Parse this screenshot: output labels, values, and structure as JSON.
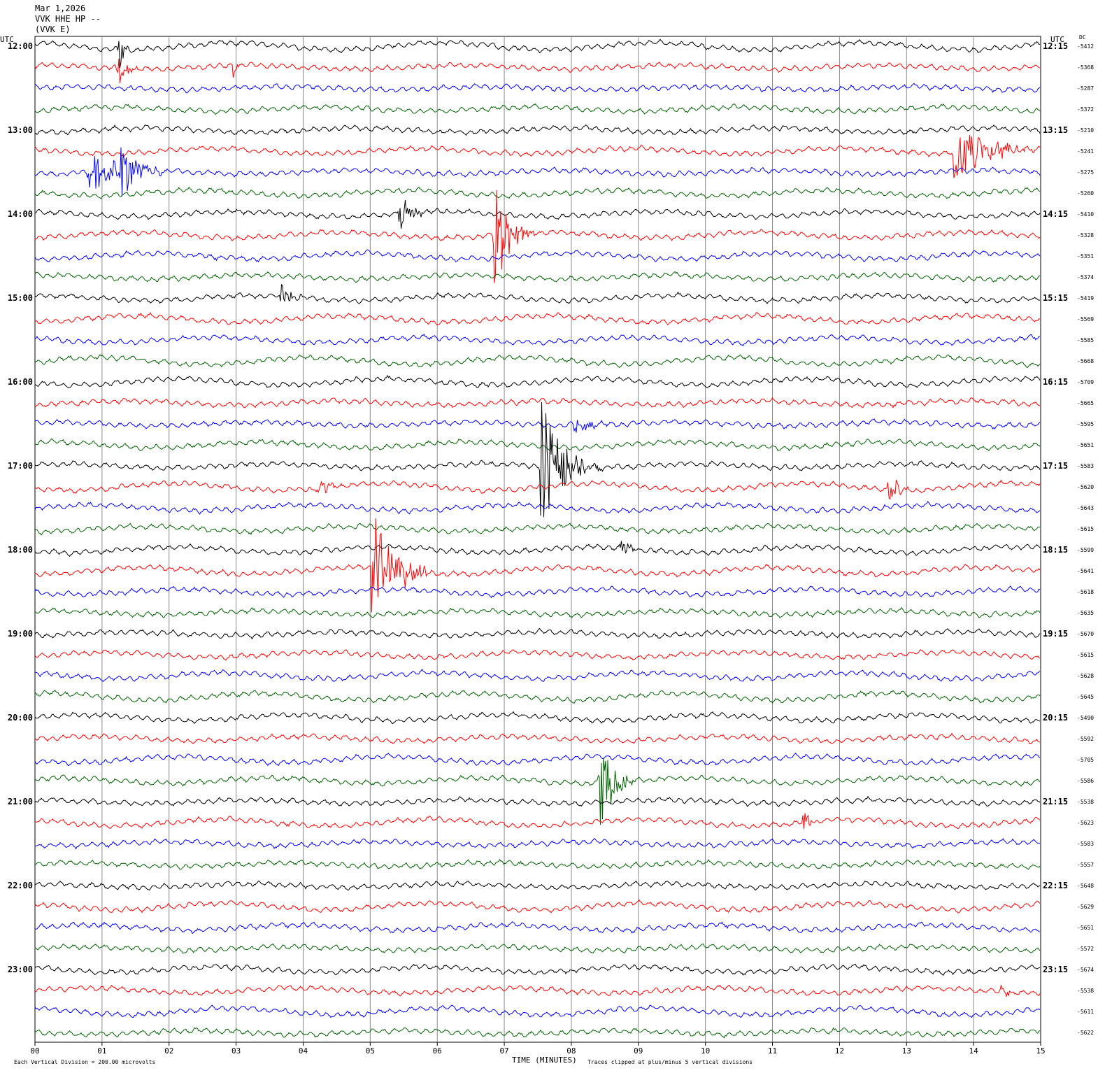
{
  "header": {
    "date": "Mar 1,2026",
    "channel": "VVK HHE HP --",
    "station": "(VVK E)"
  },
  "chart_data": {
    "type": "line",
    "title": "",
    "xlabel": "TIME (MINUTES)",
    "x_ticks": [
      "00",
      "01",
      "02",
      "03",
      "04",
      "05",
      "06",
      "07",
      "08",
      "09",
      "10",
      "11",
      "12",
      "13",
      "14",
      "15"
    ],
    "xlim": [
      0,
      15
    ],
    "left_axis_label": "UTC",
    "right_axis_label": "UTC",
    "dc_label": "DC",
    "hour_labels_left": [
      "12:00",
      "13:00",
      "14:00",
      "15:00",
      "16:00",
      "17:00",
      "18:00",
      "19:00",
      "20:00",
      "21:00",
      "22:00",
      "23:00"
    ],
    "hour_labels_right": [
      "12:15",
      "13:15",
      "14:15",
      "15:15",
      "16:15",
      "17:15",
      "18:15",
      "19:15",
      "20:15",
      "21:15",
      "22:15",
      "23:15"
    ],
    "trace_colors": [
      "#000000",
      "#ff0000",
      "#0000ff",
      "#006400"
    ],
    "dc_offsets": [
      "-5412",
      "-5368",
      "-5287",
      "-5372",
      "-5210",
      "-5241",
      "-5275",
      "-5260",
      "-5410",
      "-5328",
      "-5351",
      "-5374",
      "-5419",
      "-5569",
      "-5585",
      "-5668",
      "-5709",
      "-5665",
      "-5595",
      "-5651",
      "-5583",
      "-5620",
      "-5643",
      "-5615",
      "-5599",
      "-5641",
      "-5618",
      "-5635",
      "-5670",
      "-5615",
      "-5628",
      "-5645",
      "-5490",
      "-5592",
      "-5705",
      "-5586",
      "-5538",
      "-5623",
      "-5583",
      "-5557",
      "-5648",
      "-5629",
      "-5651",
      "-5572",
      "-5674",
      "-5538",
      "-5611",
      "-5622"
    ],
    "events": [
      {
        "trace": 0,
        "minute": 1.25,
        "amp": 1.4,
        "dur": 0.15
      },
      {
        "trace": 1,
        "minute": 1.22,
        "amp": 1.0,
        "dur": 0.3
      },
      {
        "trace": 1,
        "minute": 2.95,
        "amp": 0.6,
        "dur": 0.1
      },
      {
        "trace": 5,
        "minute": 13.7,
        "amp": 1.8,
        "dur": 1.2
      },
      {
        "trace": 6,
        "minute": 0.8,
        "amp": 1.0,
        "dur": 1.2
      },
      {
        "trace": 6,
        "minute": 1.28,
        "amp": 1.6,
        "dur": 0.6
      },
      {
        "trace": 8,
        "minute": 5.42,
        "amp": 1.2,
        "dur": 0.4
      },
      {
        "trace": 9,
        "minute": 6.85,
        "amp": 3.0,
        "dur": 0.6
      },
      {
        "trace": 12,
        "minute": 3.65,
        "amp": 0.7,
        "dur": 0.4
      },
      {
        "trace": 18,
        "minute": 8.0,
        "amp": 0.4,
        "dur": 0.8
      },
      {
        "trace": 20,
        "minute": 7.52,
        "amp": 3.5,
        "dur": 0.9
      },
      {
        "trace": 21,
        "minute": 4.2,
        "amp": 0.6,
        "dur": 0.4
      },
      {
        "trace": 21,
        "minute": 12.72,
        "amp": 1.4,
        "dur": 0.3
      },
      {
        "trace": 24,
        "minute": 8.72,
        "amp": 0.6,
        "dur": 0.3
      },
      {
        "trace": 25,
        "minute": 5.02,
        "amp": 3.2,
        "dur": 0.9
      },
      {
        "trace": 35,
        "minute": 8.42,
        "amp": 2.5,
        "dur": 0.5
      },
      {
        "trace": 37,
        "minute": 11.45,
        "amp": 0.6,
        "dur": 0.3
      },
      {
        "trace": 45,
        "minute": 14.4,
        "amp": 0.4,
        "dur": 0.3
      }
    ],
    "footer_left": "Each Vertical Division =  200.00 microvolts",
    "footer_right": "Traces clipped at plus/minus 5 vertical divisions"
  }
}
